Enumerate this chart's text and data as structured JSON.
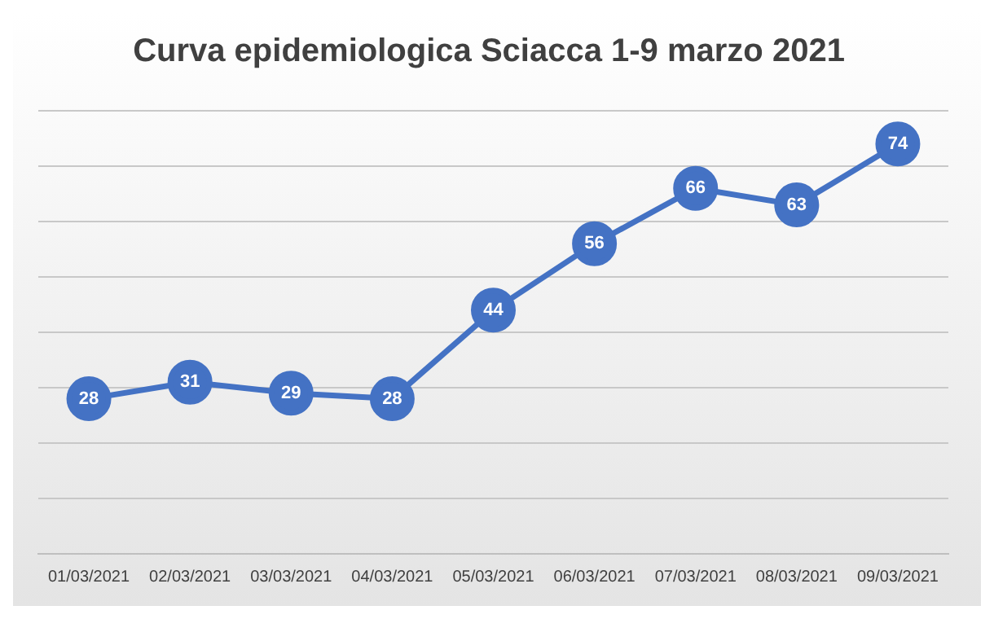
{
  "chart_data": {
    "type": "line",
    "title": "Curva epidemiologica Sciacca 1-9 marzo 2021",
    "categories": [
      "01/03/2021",
      "02/03/2021",
      "03/03/2021",
      "04/03/2021",
      "05/03/2021",
      "06/03/2021",
      "07/03/2021",
      "08/03/2021",
      "09/03/2021"
    ],
    "series": [
      {
        "color": "#4472c4",
        "values": [
          28,
          31,
          29,
          28,
          44,
          56,
          66,
          63,
          74
        ]
      }
    ],
    "ylim": [
      0,
      80
    ],
    "yticks": [
      {
        "value": 0,
        "label": null
      },
      {
        "value": 10,
        "label": null
      },
      {
        "value": 20,
        "label": null
      },
      {
        "value": 30,
        "label": null
      },
      {
        "value": 40,
        "label": null
      },
      {
        "value": 50,
        "label": null
      },
      {
        "value": 60,
        "label": null
      },
      {
        "value": 70,
        "label": null
      },
      {
        "value": 80,
        "label": null
      }
    ],
    "tick_labels": "x",
    "grid": "y",
    "marker": "circle",
    "line_style": "solid",
    "data_labels": true,
    "legend": false
  }
}
